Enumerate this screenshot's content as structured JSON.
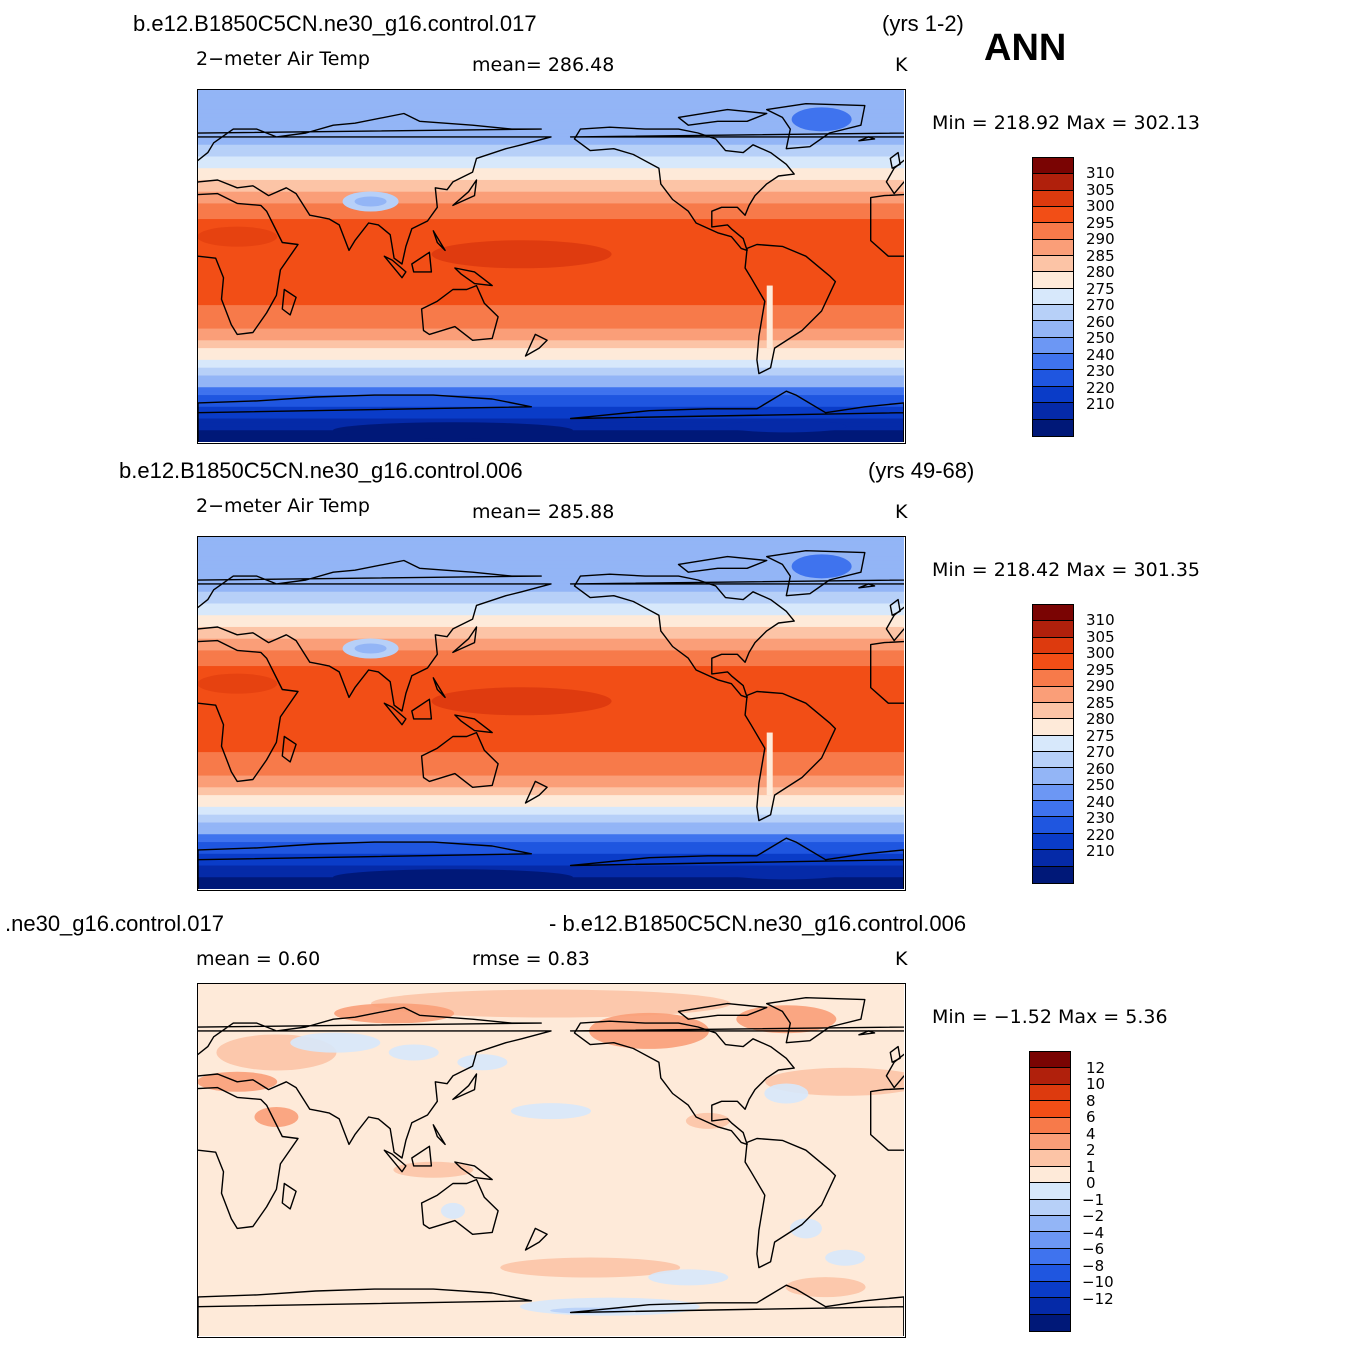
{
  "season": "ANN",
  "panels": [
    {
      "case_title": "b.e12.B1850C5CN.ne30_g16.control.017",
      "years": "(yrs 1-2)",
      "variable": "2−meter Air Temp",
      "stat_text": "mean=  286.48",
      "units": "K",
      "minmax": "Min  =  218.92  Max  =  302.13",
      "colorbar_labels": [
        "310",
        "305",
        "300",
        "295",
        "290",
        "285",
        "280",
        "275",
        "270",
        "260",
        "250",
        "240",
        "230",
        "220",
        "210"
      ],
      "colorbar_colors": [
        "#7a0403",
        "#b0200c",
        "#dd3a0e",
        "#f24e16",
        "#f77a4a",
        "#fa9e78",
        "#fcc4a6",
        "#feead9",
        "#d7e8fb",
        "#b7d0f8",
        "#93b5f6",
        "#6c97f4",
        "#3f73ee",
        "#1f56e0",
        "#0a3cc8",
        "#052aa8",
        "#001878"
      ]
    },
    {
      "case_title": "b.e12.B1850C5CN.ne30_g16.control.006",
      "years": "(yrs 49-68)",
      "variable": "2−meter Air Temp",
      "stat_text": "mean=  285.88",
      "units": "K",
      "minmax": "Min  =  218.42  Max  =  301.35",
      "colorbar_labels": [
        "310",
        "305",
        "300",
        "295",
        "290",
        "285",
        "280",
        "275",
        "270",
        "260",
        "250",
        "240",
        "230",
        "220",
        "210"
      ],
      "colorbar_colors": [
        "#7a0403",
        "#b0200c",
        "#dd3a0e",
        "#f24e16",
        "#f77a4a",
        "#fa9e78",
        "#fcc4a6",
        "#feead9",
        "#d7e8fb",
        "#b7d0f8",
        "#93b5f6",
        "#6c97f4",
        "#3f73ee",
        "#1f56e0",
        "#0a3cc8",
        "#052aa8",
        "#001878"
      ]
    },
    {
      "case_title_left": ".ne30_g16.control.017",
      "case_title_right": "- b.e12.B1850C5CN.ne30_g16.control.006",
      "mean_text": "mean  =     0.60",
      "rmse_text": "rmse  =     0.83",
      "units": "K",
      "minmax": "Min  =    −1.52  Max  =       5.36",
      "colorbar_labels": [
        "12",
        "10",
        "8",
        "6",
        "4",
        "2",
        "1",
        "0",
        "−1",
        "−2",
        "−4",
        "−6",
        "−8",
        "−10",
        "−12"
      ],
      "colorbar_colors": [
        "#7a0403",
        "#b0200c",
        "#dd3a0e",
        "#f24e16",
        "#f77a4a",
        "#fa9e78",
        "#fcc4a6",
        "#feead9",
        "#d7e8fb",
        "#b7d0f8",
        "#93b5f6",
        "#6c97f4",
        "#3f73ee",
        "#1f56e0",
        "#0a3cc8",
        "#052aa8",
        "#001878"
      ]
    }
  ]
}
